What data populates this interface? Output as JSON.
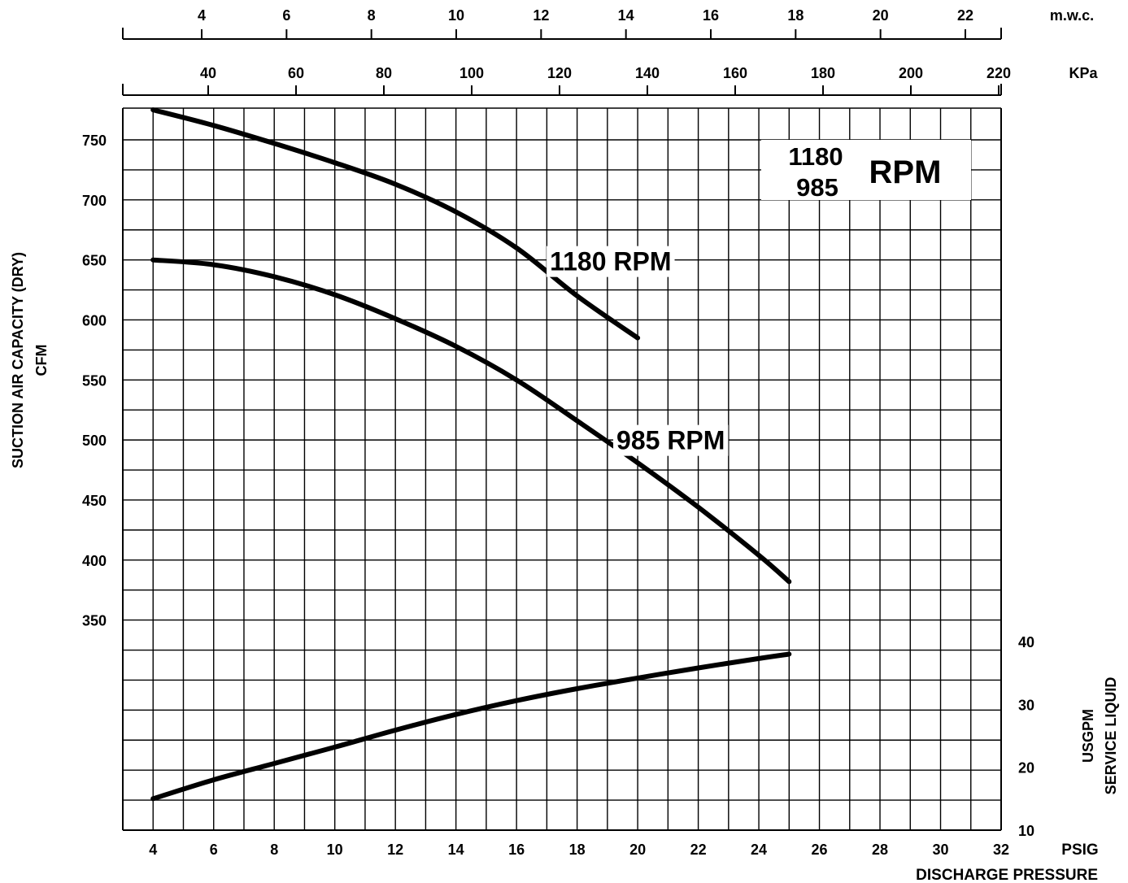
{
  "chart_data": {
    "type": "line",
    "x_axis": {
      "unit": "PSIG",
      "label": "DISCHARGE PRESSURE",
      "range": [
        3,
        32
      ],
      "ticks": [
        4,
        6,
        8,
        10,
        12,
        14,
        16,
        18,
        20,
        22,
        24,
        26,
        28,
        30,
        32
      ]
    },
    "top_axes": [
      {
        "unit": "m.w.c.",
        "ticks": [
          4,
          6,
          8,
          10,
          12,
          14,
          16,
          18,
          20,
          22
        ]
      },
      {
        "unit": "KPa",
        "ticks": [
          40,
          60,
          80,
          100,
          120,
          140,
          160,
          180,
          200,
          220
        ]
      }
    ],
    "y_axis": {
      "label_line1": "SUCTION AIR CAPACITY (DRY)",
      "label_line2": "CFM",
      "range": [
        175,
        750
      ],
      "ticks": [
        350,
        400,
        450,
        500,
        550,
        600,
        650,
        700,
        750
      ]
    },
    "y2_axis": {
      "label_line1": "SERVICE LIQUID",
      "label_line2": "USGPM",
      "range": [
        10,
        40
      ],
      "ticks": [
        10,
        20,
        30,
        40
      ]
    },
    "grid": true,
    "legend_box": {
      "speed1": "1180",
      "speed2": "985",
      "unit": "RPM",
      "placement": "top-right"
    },
    "series": [
      {
        "name": "1180 RPM",
        "axis": "left",
        "points": [
          [
            4,
            775
          ],
          [
            6,
            762
          ],
          [
            8,
            747
          ],
          [
            10,
            731
          ],
          [
            12,
            713
          ],
          [
            14,
            690
          ],
          [
            16,
            660
          ],
          [
            18,
            620
          ],
          [
            20,
            585
          ]
        ]
      },
      {
        "name": "985 RPM",
        "axis": "left",
        "points": [
          [
            4,
            650
          ],
          [
            6,
            646
          ],
          [
            8,
            636
          ],
          [
            10,
            621
          ],
          [
            12,
            601
          ],
          [
            14,
            578
          ],
          [
            16,
            550
          ],
          [
            18,
            516
          ],
          [
            20,
            481
          ],
          [
            22,
            444
          ],
          [
            24,
            404
          ],
          [
            25,
            382
          ]
        ]
      },
      {
        "name": "",
        "axis": "right",
        "points": [
          [
            4,
            15
          ],
          [
            6,
            18
          ],
          [
            8,
            20.6
          ],
          [
            10,
            23.2
          ],
          [
            12,
            25.9
          ],
          [
            14,
            28.4
          ],
          [
            16,
            30.6
          ],
          [
            18,
            32.5
          ],
          [
            20,
            34.2
          ],
          [
            22,
            35.8
          ],
          [
            24,
            37.3
          ],
          [
            25,
            38
          ]
        ]
      }
    ],
    "annotations": [
      {
        "text": "1180 RPM",
        "x": 17.1,
        "y": 650
      },
      {
        "text": "985 RPM",
        "x": 19.3,
        "y": 501
      }
    ]
  }
}
